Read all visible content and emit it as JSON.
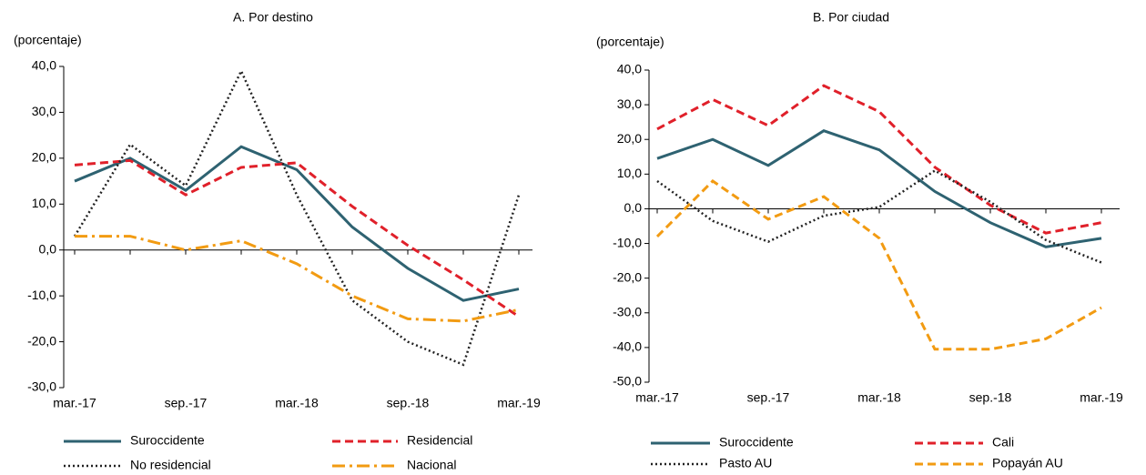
{
  "chart_data": [
    {
      "type": "line",
      "title": "A. Por destino",
      "y_label": "(porcentaje)",
      "categories": [
        "mar.-17",
        null,
        "sep.-17",
        null,
        "mar.-18",
        null,
        "sep.-18",
        null,
        "mar.-19"
      ],
      "ylim": [
        -30,
        40
      ],
      "yticks": [
        {
          "value": -30,
          "label": "-30,0"
        },
        {
          "value": -20,
          "label": "-20,0"
        },
        {
          "value": -10,
          "label": "-10,0"
        },
        {
          "value": 0,
          "label": "0,0"
        },
        {
          "value": 10,
          "label": "10,0"
        },
        {
          "value": 20,
          "label": "20,0"
        },
        {
          "value": 30,
          "label": "30,0"
        },
        {
          "value": 40,
          "label": "40,0"
        }
      ],
      "series": [
        {
          "name": "Suroccidente",
          "color": "#2e6271",
          "dash": "solid",
          "values": [
            15,
            20,
            13,
            22.5,
            17.5,
            5,
            -4,
            -11,
            -8.5
          ]
        },
        {
          "name": "Residencial",
          "color": "#e0202a",
          "dash": "dashed",
          "values": [
            18.5,
            19.5,
            12,
            18,
            19,
            9.5,
            1,
            -6.5,
            -14.5
          ]
        },
        {
          "name": "No residencial",
          "color": "#222222",
          "dash": "dotted",
          "values": [
            3,
            23,
            14,
            39,
            12,
            -11,
            -20,
            -25,
            12
          ]
        },
        {
          "name": "Nacional",
          "color": "#f29b12",
          "dash": "dashdot",
          "values": [
            3,
            3,
            0,
            2,
            -3,
            -10,
            -15,
            -15.5,
            -13
          ]
        }
      ]
    },
    {
      "type": "line",
      "title": "B. Por ciudad",
      "y_label": "(porcentaje)",
      "categories": [
        "mar.-17",
        null,
        "sep.-17",
        null,
        "mar.-18",
        null,
        "sep.-18",
        null,
        "mar.-19"
      ],
      "ylim": [
        -50,
        40
      ],
      "yticks": [
        {
          "value": -50,
          "label": "-50,0"
        },
        {
          "value": -40,
          "label": "-40,0"
        },
        {
          "value": -30,
          "label": "-30,0"
        },
        {
          "value": -20,
          "label": "-20,0"
        },
        {
          "value": -10,
          "label": "-10,0"
        },
        {
          "value": 0,
          "label": "0,0"
        },
        {
          "value": 10,
          "label": "10,0"
        },
        {
          "value": 20,
          "label": "20,0"
        },
        {
          "value": 30,
          "label": "30,0"
        },
        {
          "value": 40,
          "label": "40,0"
        }
      ],
      "series": [
        {
          "name": "Suroccidente",
          "color": "#2e6271",
          "dash": "solid",
          "values": [
            14.5,
            20,
            12.5,
            22.5,
            17,
            5,
            -4,
            -11,
            -8.5
          ]
        },
        {
          "name": "Cali",
          "color": "#e0202a",
          "dash": "dashed",
          "values": [
            23,
            31.5,
            24,
            35.5,
            28,
            12,
            1,
            -7,
            -4
          ]
        },
        {
          "name": "Pasto AU",
          "color": "#222222",
          "dash": "dotted",
          "values": [
            8,
            -3.5,
            -9.5,
            -2,
            0.5,
            11,
            2,
            -9,
            -15.5
          ]
        },
        {
          "name": "Popayán AU",
          "color": "#f29b12",
          "dash": "dashed",
          "values": [
            -8,
            8,
            -3,
            3.5,
            -8.5,
            -40.5,
            -40.5,
            -37.5,
            -28.5
          ]
        }
      ]
    }
  ]
}
